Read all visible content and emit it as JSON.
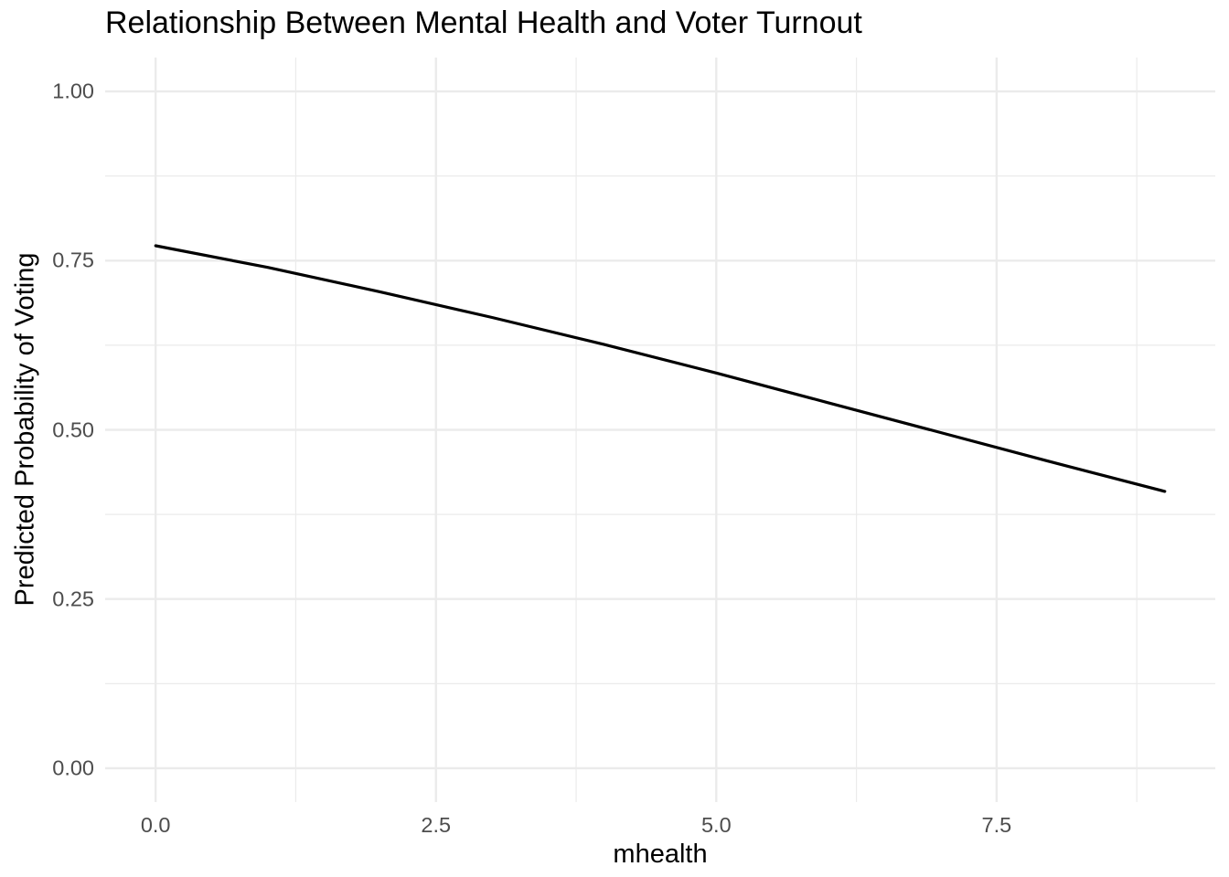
{
  "chart_data": {
    "type": "line",
    "title": "Relationship Between Mental Health and Voter Turnout",
    "xlabel": "mhealth",
    "ylabel": "Predicted Probability of Voting",
    "x": [
      0,
      1,
      2,
      3,
      4,
      5,
      6,
      7,
      8,
      9
    ],
    "y": [
      0.772,
      0.74,
      0.704,
      0.666,
      0.626,
      0.584,
      0.54,
      0.496,
      0.452,
      0.409
    ],
    "xlim": [
      -0.45,
      9.45
    ],
    "ylim": [
      -0.05,
      1.05
    ],
    "x_ticks": [
      0,
      2.5,
      5,
      7.5
    ],
    "x_tick_labels": [
      "0.0",
      "2.5",
      "5.0",
      "7.5"
    ],
    "x_minor_ticks": [
      1.25,
      3.75,
      6.25,
      8.75
    ],
    "y_ticks": [
      0,
      0.25,
      0.5,
      0.75,
      1
    ],
    "y_tick_labels": [
      "0.00",
      "0.25",
      "0.50",
      "0.75",
      "1.00"
    ],
    "y_minor_ticks": [
      0.125,
      0.375,
      0.625,
      0.875
    ],
    "grid": true,
    "legend_position": "none",
    "colors": {
      "line": "#000000",
      "grid_major": "#ebebeb",
      "grid_minor": "#ebebeb",
      "tick_label": "#4d4d4d",
      "title": "#000000",
      "axis_title": "#000000",
      "background": "#ffffff"
    }
  }
}
